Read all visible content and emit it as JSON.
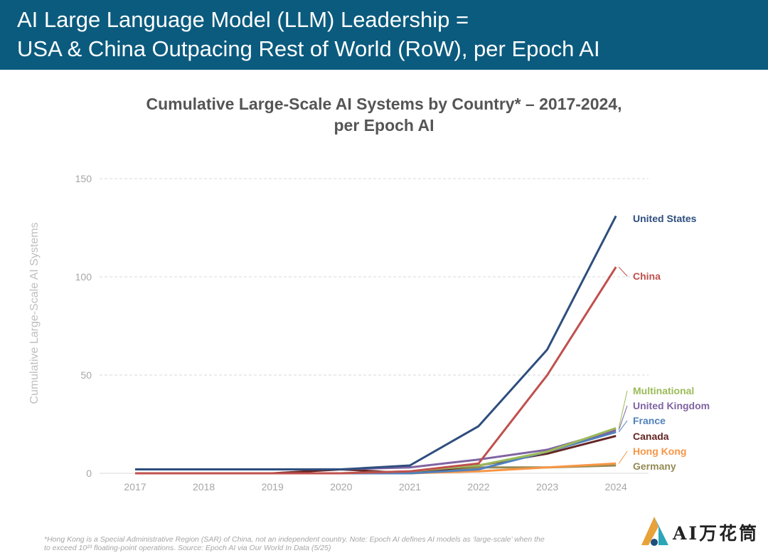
{
  "header": {
    "title_line1": "AI Large Language Model (LLM) Leadership =",
    "title_line2": "USA & China Outpacing Rest of World (RoW), per Epoch AI"
  },
  "chart_data": {
    "type": "line",
    "title_line1": "Cumulative Large-Scale AI Systems by Country* – 2017-2024,",
    "title_line2": "per Epoch AI",
    "xlabel": "",
    "ylabel": "Cumulative Large-Scale AI Systems",
    "x": [
      2017,
      2018,
      2019,
      2020,
      2021,
      2022,
      2023,
      2024
    ],
    "x_ticks": [
      "2017",
      "2018",
      "2019",
      "2020",
      "2021",
      "2022",
      "2023",
      "2024"
    ],
    "y_ticks": [
      "0",
      "50",
      "100",
      "150"
    ],
    "ylim": [
      0,
      150
    ],
    "grid": "horizontal dashed",
    "legend": "direct labels at right end of lines",
    "series": [
      {
        "name": "United States",
        "color": "#2e4e7e",
        "values": [
          2,
          2,
          2,
          2,
          4,
          24,
          63,
          131
        ]
      },
      {
        "name": "China",
        "color": "#c0504d",
        "values": [
          0,
          0,
          0,
          0,
          1,
          5,
          50,
          105
        ]
      },
      {
        "name": "Multinational",
        "color": "#9bbb59",
        "values": [
          0,
          0,
          0,
          0,
          1,
          4,
          11,
          23
        ]
      },
      {
        "name": "United Kingdom",
        "color": "#8064a2",
        "values": [
          2,
          2,
          2,
          2,
          3,
          7,
          12,
          22
        ]
      },
      {
        "name": "France",
        "color": "#4f81bd",
        "values": [
          0,
          0,
          0,
          0,
          0,
          2,
          11,
          21
        ]
      },
      {
        "name": "Canada",
        "color": "#632523",
        "values": [
          0,
          0,
          0,
          2,
          0,
          4,
          10,
          19
        ]
      },
      {
        "name": "Hong Kong",
        "color": "#f79646",
        "values": [
          0,
          0,
          0,
          0,
          0,
          1,
          3,
          5
        ]
      },
      {
        "name": "Germany",
        "color": "#948a54",
        "values": [
          0,
          0,
          0,
          0,
          0,
          3,
          3,
          4
        ]
      }
    ]
  },
  "footnote": {
    "line1": "*Hong Kong is a Special Administrative Region (SAR) of China, not an independent country. Note: Epoch AI defines AI models as ‘large-scale’ when the",
    "line2": "to exceed 10²³ floating-point operations. Source: Epoch AI via Our World In Data (5/25)"
  },
  "logo": {
    "text": "AI万花筒",
    "colors": [
      "#e8a23a",
      "#2aa6b8",
      "#1c4e7a"
    ]
  }
}
